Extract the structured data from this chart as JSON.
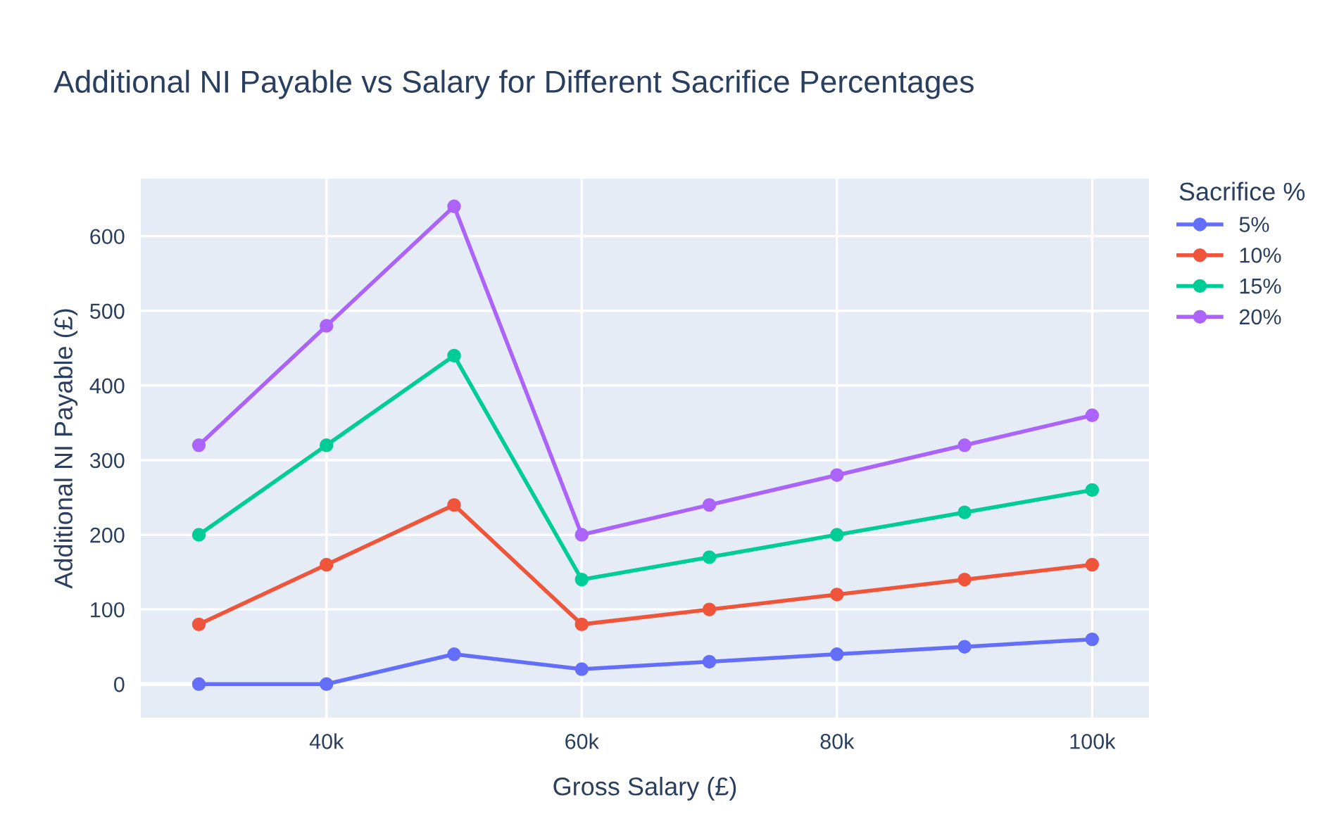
{
  "chart_data": {
    "type": "line",
    "title": "Additional NI Payable vs Salary for Different Sacrifice Percentages",
    "xlabel": "Gross Salary (£)",
    "ylabel": "Additional NI Payable (£)",
    "legend_title": "Sacrifice %",
    "x": [
      30000,
      40000,
      50000,
      60000,
      70000,
      80000,
      90000,
      100000
    ],
    "series": [
      {
        "name": "5%",
        "color": "#636efa",
        "values": [
          0,
          0,
          40,
          20,
          30,
          40,
          50,
          60
        ]
      },
      {
        "name": "10%",
        "color": "#ef553b",
        "values": [
          80,
          160,
          240,
          80,
          100,
          120,
          140,
          160
        ]
      },
      {
        "name": "15%",
        "color": "#00cc96",
        "values": [
          200,
          320,
          440,
          140,
          170,
          200,
          230,
          260
        ]
      },
      {
        "name": "20%",
        "color": "#ab63fa",
        "values": [
          320,
          480,
          640,
          200,
          240,
          280,
          320,
          360
        ]
      }
    ],
    "xlim": [
      25450,
      104450
    ],
    "ylim": [
      -45,
      677
    ],
    "xticks": [
      {
        "value": 40000,
        "label": "40k"
      },
      {
        "value": 60000,
        "label": "60k"
      },
      {
        "value": 80000,
        "label": "80k"
      },
      {
        "value": 100000,
        "label": "100k"
      }
    ],
    "yticks": [
      0,
      100,
      200,
      300,
      400,
      500,
      600
    ],
    "grid": true,
    "legend": "top right",
    "marker": "circle",
    "line_style": "solid"
  }
}
